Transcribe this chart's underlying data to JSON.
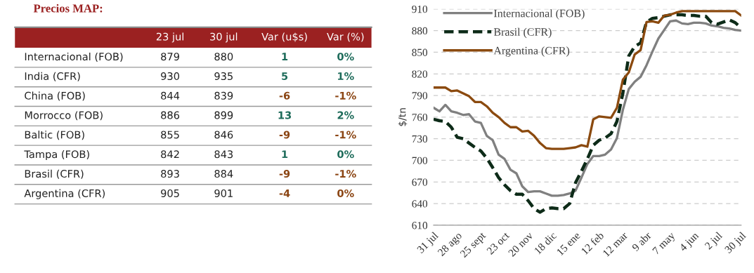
{
  "chart_data": [
    {
      "type": "other",
      "title": "Precios MAP:",
      "categories": [
        "Internacional (FOB)",
        "India (CFR)",
        "China (FOB)",
        "Morrocco (FOB)",
        "Baltic (FOB)",
        "Tampa (FOB)",
        "Brasil (CFR)",
        "Argentina (CFR)"
      ],
      "series": [
        {
          "name": "23 jul",
          "values": [
            879,
            930,
            844,
            886,
            855,
            842,
            893,
            905
          ]
        },
        {
          "name": "30 jul",
          "values": [
            880,
            935,
            839,
            899,
            846,
            843,
            884,
            901
          ]
        },
        {
          "name": "Var (u$s)",
          "colors": [
            "#1d6b5a",
            "#1d6b5a",
            "#8b4513",
            "#1d6b5a",
            "#8b4513",
            "#1d6b5a",
            "#8b4513",
            "#8b4513"
          ],
          "values": [
            1,
            5,
            -6,
            13,
            -9,
            1,
            -9,
            -4
          ]
        },
        {
          "name": "Var (%)",
          "colors": [
            "#1d6b5a",
            "#1d6b5a",
            "#8b4513",
            "#1d6b5a",
            "#8b4513",
            "#1d6b5a",
            "#8b4513",
            "#8b4513"
          ],
          "values": [
            0,
            1,
            -1,
            2,
            -1,
            0,
            -1,
            0
          ],
          "value_labels": [
            "0%",
            "1%",
            "-1%",
            "2%",
            "-1%",
            "0%",
            "-1%",
            "0%"
          ]
        }
      ],
      "data_labels": true
    },
    {
      "type": "line",
      "ylabel": "$/tn",
      "categories": [
        "31 jul",
        null,
        null,
        null,
        "28 ago",
        null,
        null,
        null,
        "25 sept",
        null,
        null,
        null,
        "23 oct",
        null,
        null,
        null,
        "20 nov",
        null,
        null,
        null,
        "18 dic",
        null,
        null,
        null,
        "15 ene",
        null,
        null,
        null,
        "12 feb",
        null,
        null,
        null,
        "12 mar",
        null,
        null,
        null,
        "9 abr",
        null,
        null,
        null,
        "7 may",
        null,
        null,
        null,
        "4 jun",
        null,
        null,
        null,
        "2 jul",
        null,
        null,
        null,
        "30 jul"
      ],
      "series": [
        {
          "name": "Internacional (FOB)",
          "color": "#808080",
          "line_style": "solid",
          "values": [
            773,
            768,
            777,
            768,
            766,
            763,
            764,
            754,
            752,
            734,
            728,
            708,
            702,
            687,
            682,
            664,
            656,
            657,
            657,
            654,
            651,
            651,
            652,
            654,
            658,
            676,
            695,
            706,
            706,
            708,
            715,
            731,
            770,
            799,
            809,
            816,
            832,
            851,
            869,
            881,
            893,
            894,
            890,
            889,
            891,
            891,
            890,
            887,
            886,
            884,
            883,
            881,
            880
          ]
        },
        {
          "name": "Brasil (CFR)",
          "color": "#0d2b18",
          "line_style": "dashed",
          "values": [
            757,
            755,
            754,
            746,
            732,
            730,
            724,
            718,
            713,
            703,
            690,
            676,
            666,
            658,
            653,
            653,
            644,
            633,
            628,
            633,
            634,
            633,
            633,
            640,
            669,
            685,
            702,
            721,
            728,
            731,
            737,
            754,
            793,
            845,
            858,
            863,
            892,
            897,
            898,
            900,
            902,
            902,
            902,
            901,
            901,
            900,
            900,
            891,
            889,
            892,
            895,
            891,
            884
          ]
        },
        {
          "name": "Argentina (CFR)",
          "color": "#8b4a0f",
          "line_style": "solid",
          "values": [
            801,
            801,
            801,
            796,
            797,
            793,
            789,
            781,
            781,
            775,
            766,
            760,
            752,
            746,
            746,
            740,
            741,
            734,
            724,
            717,
            716,
            716,
            716,
            717,
            718,
            721,
            719,
            757,
            761,
            760,
            759,
            773,
            812,
            822,
            847,
            853,
            892,
            893,
            891,
            901,
            902,
            905,
            907,
            907,
            907,
            907,
            907,
            907,
            907,
            907,
            907,
            907,
            901
          ]
        }
      ],
      "ylim": [
        610,
        910
      ],
      "yticks": [
        610,
        640,
        670,
        700,
        730,
        760,
        790,
        820,
        850,
        880,
        910
      ],
      "grid": "y",
      "legend": "top left",
      "marker": "none"
    }
  ]
}
